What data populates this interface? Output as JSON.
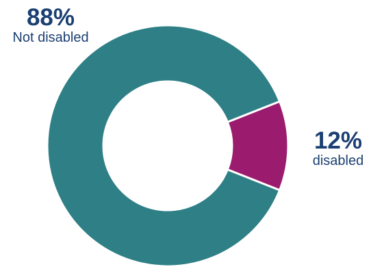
{
  "chart_data": {
    "type": "pie",
    "variant": "donut",
    "slices": [
      {
        "label": "Not disabled",
        "value": 88,
        "display": "88%",
        "color": "#2e7f86"
      },
      {
        "label": "disabled",
        "value": 12,
        "display": "12%",
        "color": "#9b1b6e"
      }
    ],
    "title": "",
    "legend": "none"
  },
  "colors": {
    "label_text": "#1b3f72",
    "separator": "#ffffff"
  }
}
